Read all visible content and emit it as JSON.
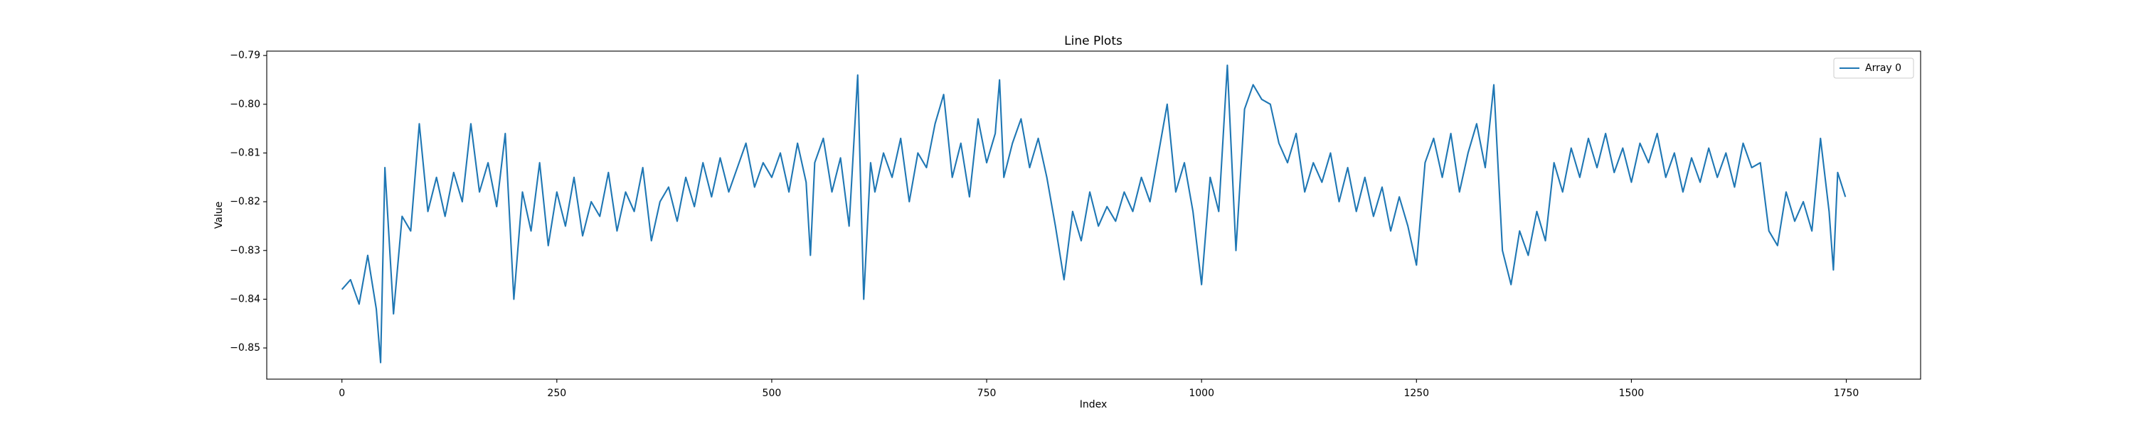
{
  "chart_data": {
    "type": "line",
    "title": "Line Plots",
    "xlabel": "Index",
    "ylabel": "Value",
    "x": [
      0,
      10,
      20,
      30,
      40,
      45,
      50,
      60,
      70,
      80,
      90,
      100,
      110,
      120,
      130,
      140,
      150,
      160,
      170,
      180,
      190,
      200,
      210,
      220,
      230,
      240,
      250,
      260,
      270,
      280,
      290,
      300,
      310,
      320,
      330,
      340,
      350,
      360,
      370,
      380,
      390,
      400,
      410,
      420,
      430,
      440,
      450,
      460,
      470,
      480,
      490,
      500,
      510,
      520,
      530,
      540,
      545,
      550,
      560,
      570,
      580,
      590,
      600,
      607,
      615,
      620,
      630,
      640,
      650,
      660,
      670,
      680,
      690,
      700,
      710,
      720,
      730,
      740,
      750,
      760,
      765,
      770,
      780,
      790,
      800,
      810,
      820,
      830,
      840,
      850,
      860,
      870,
      880,
      890,
      900,
      910,
      920,
      930,
      940,
      950,
      960,
      970,
      980,
      990,
      1000,
      1010,
      1020,
      1030,
      1040,
      1050,
      1060,
      1070,
      1080,
      1090,
      1100,
      1110,
      1120,
      1130,
      1140,
      1150,
      1160,
      1170,
      1180,
      1190,
      1200,
      1210,
      1220,
      1230,
      1240,
      1250,
      1260,
      1270,
      1280,
      1290,
      1300,
      1310,
      1320,
      1330,
      1340,
      1350,
      1360,
      1370,
      1380,
      1390,
      1400,
      1410,
      1420,
      1430,
      1440,
      1450,
      1460,
      1470,
      1480,
      1490,
      1500,
      1510,
      1520,
      1530,
      1540,
      1550,
      1560,
      1570,
      1580,
      1590,
      1600,
      1610,
      1620,
      1630,
      1640,
      1650,
      1660,
      1670,
      1680,
      1690,
      1700,
      1710,
      1720,
      1730,
      1735,
      1740,
      1749
    ],
    "series": [
      {
        "name": "Array 0",
        "color": "#1f77b4",
        "values": [
          -0.838,
          -0.836,
          -0.841,
          -0.831,
          -0.842,
          -0.853,
          -0.813,
          -0.843,
          -0.823,
          -0.826,
          -0.804,
          -0.822,
          -0.815,
          -0.823,
          -0.814,
          -0.82,
          -0.804,
          -0.818,
          -0.812,
          -0.821,
          -0.806,
          -0.84,
          -0.818,
          -0.826,
          -0.812,
          -0.829,
          -0.818,
          -0.825,
          -0.815,
          -0.827,
          -0.82,
          -0.823,
          -0.814,
          -0.826,
          -0.818,
          -0.822,
          -0.813,
          -0.828,
          -0.82,
          -0.817,
          -0.824,
          -0.815,
          -0.821,
          -0.812,
          -0.819,
          -0.811,
          -0.818,
          -0.813,
          -0.808,
          -0.817,
          -0.812,
          -0.815,
          -0.81,
          -0.818,
          -0.808,
          -0.816,
          -0.831,
          -0.812,
          -0.807,
          -0.818,
          -0.811,
          -0.825,
          -0.794,
          -0.84,
          -0.812,
          -0.818,
          -0.81,
          -0.815,
          -0.807,
          -0.82,
          -0.81,
          -0.813,
          -0.804,
          -0.798,
          -0.815,
          -0.808,
          -0.819,
          -0.803,
          -0.812,
          -0.806,
          -0.795,
          -0.815,
          -0.808,
          -0.803,
          -0.813,
          -0.807,
          -0.815,
          -0.825,
          -0.836,
          -0.822,
          -0.828,
          -0.818,
          -0.825,
          -0.821,
          -0.824,
          -0.818,
          -0.822,
          -0.815,
          -0.82,
          -0.81,
          -0.8,
          -0.818,
          -0.812,
          -0.822,
          -0.837,
          -0.815,
          -0.822,
          -0.792,
          -0.83,
          -0.801,
          -0.796,
          -0.799,
          -0.8,
          -0.808,
          -0.812,
          -0.806,
          -0.818,
          -0.812,
          -0.816,
          -0.81,
          -0.82,
          -0.813,
          -0.822,
          -0.815,
          -0.823,
          -0.817,
          -0.826,
          -0.819,
          -0.825,
          -0.833,
          -0.812,
          -0.807,
          -0.815,
          -0.806,
          -0.818,
          -0.81,
          -0.804,
          -0.813,
          -0.796,
          -0.83,
          -0.837,
          -0.826,
          -0.831,
          -0.822,
          -0.828,
          -0.812,
          -0.818,
          -0.809,
          -0.815,
          -0.807,
          -0.813,
          -0.806,
          -0.814,
          -0.809,
          -0.816,
          -0.808,
          -0.812,
          -0.806,
          -0.815,
          -0.81,
          -0.818,
          -0.811,
          -0.816,
          -0.809,
          -0.815,
          -0.81,
          -0.817,
          -0.808,
          -0.813,
          -0.812,
          -0.826,
          -0.829,
          -0.818,
          -0.824,
          -0.82,
          -0.826,
          -0.807,
          -0.822,
          -0.834,
          -0.814,
          -0.819
        ]
      }
    ],
    "xlim": [
      -87.45,
      1836.45
    ],
    "ylim": [
      -0.8564,
      -0.7891
    ],
    "xticks": [
      0,
      250,
      500,
      750,
      1000,
      1250,
      1500,
      1750
    ],
    "yticks": [
      {
        "value": -0.85,
        "label": "−0.85"
      },
      {
        "value": -0.84,
        "label": "−0.84"
      },
      {
        "value": -0.83,
        "label": "−0.83"
      },
      {
        "value": -0.82,
        "label": "−0.82"
      },
      {
        "value": -0.81,
        "label": "−0.81"
      },
      {
        "value": -0.8,
        "label": "−0.80"
      },
      {
        "value": -0.79,
        "label": "−0.79"
      }
    ],
    "grid": false,
    "legend": "upper right"
  }
}
